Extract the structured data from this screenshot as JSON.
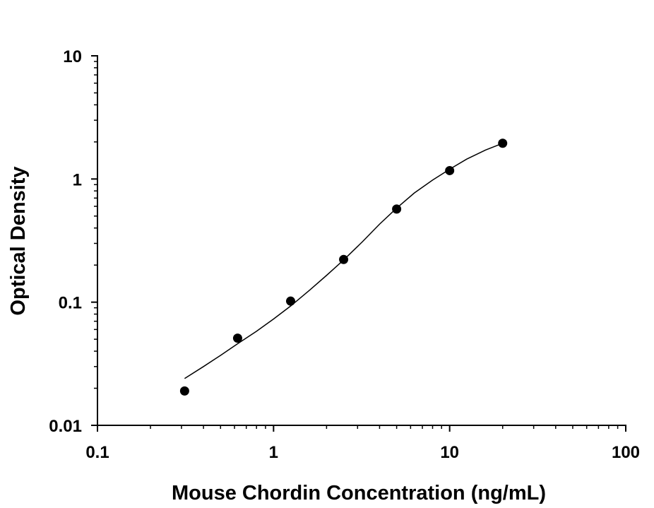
{
  "chart_data": {
    "type": "scatter",
    "title": "",
    "xlabel": "Mouse Chordin Concentration (ng/mL)",
    "ylabel": "Optical Density",
    "x_scale": "log",
    "y_scale": "log",
    "xlim": [
      0.1,
      100
    ],
    "ylim": [
      0.01,
      10
    ],
    "x_tick_labels": [
      "0.1",
      "1",
      "10",
      "100"
    ],
    "y_tick_labels": [
      "0.01",
      "0.1",
      "1",
      "10"
    ],
    "grid": false,
    "legend": "none",
    "point_color": "#000000",
    "series": [
      {
        "x": [
          0.3125,
          0.625,
          1.25,
          2.5,
          5,
          10,
          20
        ],
        "y": [
          0.019,
          0.051,
          0.102,
          0.222,
          0.57,
          1.17,
          1.95
        ]
      }
    ],
    "fit_curve": {
      "x": [
        0.3125,
        0.4,
        0.5,
        0.625,
        0.8,
        1.0,
        1.25,
        1.6,
        2.0,
        2.5,
        3.2,
        4.0,
        5.0,
        6.3,
        8.0,
        10,
        12.5,
        16,
        20
      ],
      "y": [
        0.024,
        0.03,
        0.037,
        0.046,
        0.058,
        0.073,
        0.093,
        0.125,
        0.165,
        0.22,
        0.31,
        0.43,
        0.58,
        0.77,
        0.98,
        1.2,
        1.45,
        1.72,
        1.95
      ]
    }
  }
}
